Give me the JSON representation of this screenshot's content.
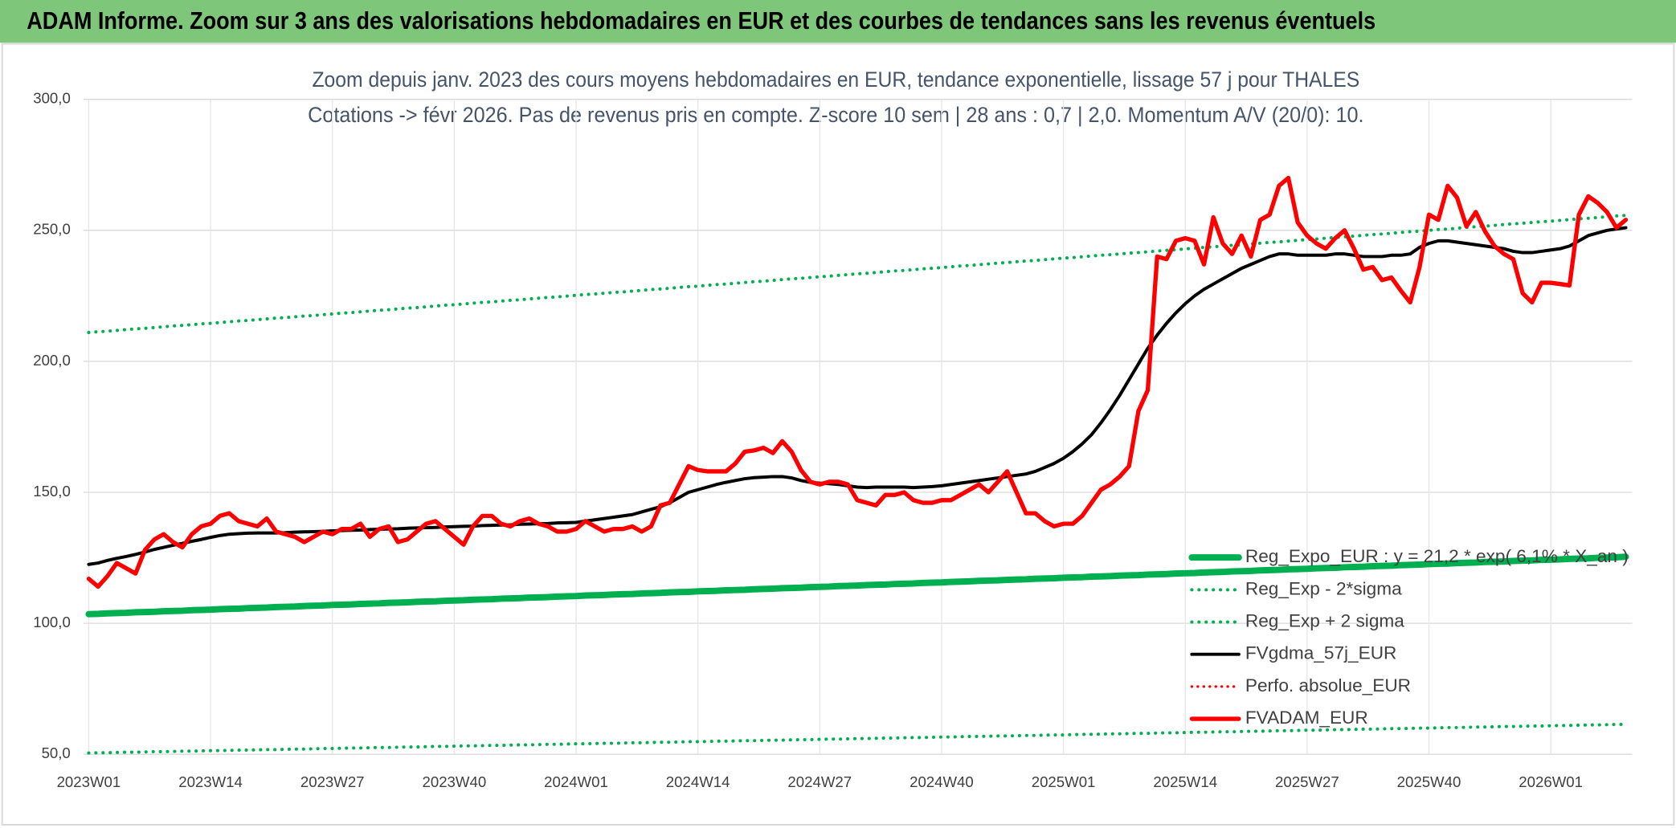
{
  "banner": "ADAM Informe. Zoom sur 3 ans des valorisations hebdomadaires en EUR et des courbes de tendances sans les revenus éventuels",
  "chart_data": {
    "type": "line",
    "title": "Zoom depuis janv. 2023 des cours moyens hebdomadaires en EUR, tendance exponentielle, lissage 57 j pour THALES",
    "subtitle": "Cotations -> févr 2026. Pas de revenus pris en compte. Z-score 10 sem | 28 ans : 0,7 | 2,0. Momentum A/V (20/0): 10.",
    "categories": [
      "2023W01",
      null,
      null,
      null,
      null,
      null,
      null,
      null,
      null,
      null,
      null,
      null,
      null,
      "2023W14",
      null,
      null,
      null,
      null,
      null,
      null,
      null,
      null,
      null,
      null,
      null,
      null,
      "2023W27",
      null,
      null,
      null,
      null,
      null,
      null,
      null,
      null,
      null,
      null,
      null,
      null,
      "2023W40",
      null,
      null,
      null,
      null,
      null,
      null,
      null,
      null,
      null,
      null,
      null,
      null,
      "2024W01",
      null,
      null,
      null,
      null,
      null,
      null,
      null,
      null,
      null,
      null,
      null,
      null,
      "2024W14",
      null,
      null,
      null,
      null,
      null,
      null,
      null,
      null,
      null,
      null,
      null,
      null,
      "2024W27",
      null,
      null,
      null,
      null,
      null,
      null,
      null,
      null,
      null,
      null,
      null,
      null,
      "2024W40",
      null,
      null,
      null,
      null,
      null,
      null,
      null,
      null,
      null,
      null,
      null,
      null,
      "2025W01",
      null,
      null,
      null,
      null,
      null,
      null,
      null,
      null,
      null,
      null,
      null,
      null,
      "2025W14",
      null,
      null,
      null,
      null,
      null,
      null,
      null,
      null,
      null,
      null,
      null,
      null,
      "2025W27",
      null,
      null,
      null,
      null,
      null,
      null,
      null,
      null,
      null,
      null,
      null,
      null,
      "2025W40",
      null,
      null,
      null,
      null,
      null,
      null,
      null,
      null,
      null,
      null,
      null,
      null,
      "2026W01",
      null,
      null,
      null,
      null,
      null,
      null,
      null,
      null
    ],
    "ylim": [
      50,
      300
    ],
    "yticks": [
      {
        "value": 50,
        "label": "50,0"
      },
      {
        "value": 100,
        "label": "100,0"
      },
      {
        "value": 150,
        "label": "150,0"
      },
      {
        "value": 200,
        "label": "200,0"
      },
      {
        "value": 250,
        "label": "250,0"
      },
      {
        "value": 300,
        "label": "300,0"
      }
    ],
    "grid": true,
    "legend_position": "lower right",
    "series": [
      {
        "name": "Reg_Expo_EUR : y = 21,2 * exp( 6,1% * X_an )",
        "color": "#00b050",
        "line_style": "solid",
        "values": [
          103.5,
          103.6,
          103.8,
          103.9,
          104.0,
          104.2,
          104.3,
          104.4,
          104.6,
          104.7,
          104.8,
          105.0,
          105.1,
          105.2,
          105.4,
          105.5,
          105.6,
          105.8,
          105.9,
          106.0,
          106.2,
          106.3,
          106.4,
          106.6,
          106.7,
          106.8,
          107.0,
          107.1,
          107.2,
          107.4,
          107.5,
          107.6,
          107.8,
          107.9,
          108.0,
          108.2,
          108.3,
          108.4,
          108.6,
          108.7,
          108.8,
          109.0,
          109.1,
          109.2,
          109.4,
          109.5,
          109.6,
          109.8,
          109.9,
          110.0,
          110.2,
          110.3,
          110.4,
          110.6,
          110.7,
          110.8,
          111.0,
          111.1,
          111.2,
          111.4,
          111.5,
          111.6,
          111.8,
          111.9,
          112.0,
          112.2,
          112.3,
          112.4,
          112.6,
          112.7,
          112.8,
          113.0,
          113.1,
          113.2,
          113.4,
          113.5,
          113.6,
          113.8,
          113.9,
          114.0,
          114.2,
          114.3,
          114.4,
          114.6,
          114.7,
          114.8,
          115.0,
          115.1,
          115.2,
          115.4,
          115.5,
          115.6,
          115.8,
          115.9,
          116.0,
          116.2,
          116.3,
          116.4,
          116.6,
          116.7,
          116.8,
          117.0,
          117.1,
          117.2,
          117.4,
          117.5,
          117.6,
          117.8,
          117.9,
          118.0,
          118.2,
          118.3,
          118.4,
          118.6,
          118.7,
          118.8,
          119.0,
          119.1,
          119.2,
          119.4,
          119.5,
          119.6,
          119.8,
          119.9,
          120.0,
          120.2,
          120.3,
          120.4,
          120.6,
          120.7,
          120.8,
          121.0,
          121.1,
          121.2,
          121.4,
          121.5,
          121.6,
          121.8,
          121.9,
          122.0,
          122.2,
          122.3,
          122.4,
          122.6,
          122.7,
          122.8,
          123.0,
          123.1,
          123.2,
          123.4,
          123.5,
          123.6,
          123.8,
          123.9,
          124.0,
          124.2,
          124.3,
          124.4,
          124.6,
          124.7,
          124.8,
          125.0,
          125.1,
          125.2,
          125.4
        ]
      },
      {
        "name": "Reg_Exp - 2*sigma",
        "color": "#00b050",
        "line_style": "dotted",
        "values": [
          50.5,
          50.6,
          50.6,
          50.7,
          50.8,
          50.8,
          50.9,
          51.0,
          51.0,
          51.1,
          51.2,
          51.2,
          51.3,
          51.4,
          51.4,
          51.5,
          51.6,
          51.6,
          51.7,
          51.8,
          51.8,
          51.9,
          52.0,
          52.0,
          52.1,
          52.2,
          52.2,
          52.3,
          52.4,
          52.4,
          52.5,
          52.6,
          52.6,
          52.7,
          52.8,
          52.8,
          52.9,
          53.0,
          53.0,
          53.1,
          53.2,
          53.2,
          53.3,
          53.4,
          53.4,
          53.5,
          53.6,
          53.6,
          53.7,
          53.8,
          53.8,
          53.9,
          54.0,
          54.0,
          54.1,
          54.2,
          54.2,
          54.3,
          54.4,
          54.4,
          54.5,
          54.6,
          54.6,
          54.7,
          54.8,
          54.8,
          54.9,
          55.0,
          55.0,
          55.1,
          55.2,
          55.2,
          55.3,
          55.4,
          55.4,
          55.5,
          55.6,
          55.6,
          55.7,
          55.8,
          55.8,
          55.9,
          56.0,
          56.0,
          56.1,
          56.2,
          56.2,
          56.3,
          56.4,
          56.4,
          56.5,
          56.6,
          56.6,
          56.7,
          56.8,
          56.8,
          56.9,
          57.0,
          57.0,
          57.1,
          57.2,
          57.2,
          57.3,
          57.4,
          57.4,
          57.5,
          57.6,
          57.6,
          57.7,
          57.8,
          57.8,
          57.9,
          58.0,
          58.0,
          58.1,
          58.2,
          58.2,
          58.3,
          58.4,
          58.4,
          58.5,
          58.6,
          58.6,
          58.7,
          58.8,
          58.8,
          58.9,
          59.0,
          59.0,
          59.1,
          59.2,
          59.2,
          59.3,
          59.4,
          59.4,
          59.5,
          59.6,
          59.6,
          59.7,
          59.8,
          59.8,
          59.9,
          60.0,
          60.0,
          60.1,
          60.2,
          60.2,
          60.3,
          60.4,
          60.4,
          60.5,
          60.6,
          60.6,
          60.7,
          60.8,
          60.8,
          60.9,
          61.0,
          61.0,
          61.1,
          61.2,
          61.2,
          61.3,
          61.4,
          61.4
        ]
      },
      {
        "name": "Reg_Exp + 2 sigma",
        "color": "#00b050",
        "line_style": "dotted",
        "values": [
          211.0,
          211.3,
          211.5,
          211.8,
          212.1,
          212.4,
          212.6,
          212.9,
          213.2,
          213.5,
          213.7,
          214.0,
          214.3,
          214.5,
          214.8,
          215.1,
          215.4,
          215.6,
          215.9,
          216.2,
          216.5,
          216.7,
          217.0,
          217.3,
          217.5,
          217.8,
          218.1,
          218.4,
          218.6,
          218.9,
          219.2,
          219.5,
          219.7,
          220.0,
          220.3,
          220.5,
          220.8,
          221.1,
          221.4,
          221.6,
          221.9,
          222.2,
          222.5,
          222.7,
          223.0,
          223.3,
          223.5,
          223.8,
          224.1,
          224.4,
          224.6,
          224.9,
          225.2,
          225.5,
          225.7,
          226.0,
          226.3,
          226.5,
          226.8,
          227.1,
          227.4,
          227.6,
          227.9,
          228.2,
          228.5,
          228.7,
          229.0,
          229.3,
          229.5,
          229.8,
          230.1,
          230.4,
          230.6,
          230.9,
          231.2,
          231.5,
          231.7,
          232.0,
          232.3,
          232.5,
          232.8,
          233.1,
          233.4,
          233.6,
          233.9,
          234.2,
          234.5,
          234.7,
          235.0,
          235.3,
          235.5,
          235.8,
          236.1,
          236.4,
          236.6,
          236.9,
          237.2,
          237.5,
          237.7,
          238.0,
          238.3,
          238.5,
          238.8,
          239.1,
          239.4,
          239.6,
          239.9,
          240.2,
          240.5,
          240.7,
          241.0,
          241.3,
          241.5,
          241.8,
          242.1,
          242.4,
          242.6,
          242.9,
          243.2,
          243.5,
          243.7,
          244.0,
          244.3,
          244.5,
          244.8,
          245.1,
          245.4,
          245.6,
          245.9,
          246.2,
          246.5,
          246.7,
          247.0,
          247.3,
          247.5,
          247.8,
          248.1,
          248.4,
          248.6,
          248.9,
          249.2,
          249.5,
          249.7,
          250.0,
          250.3,
          250.5,
          250.8,
          251.1,
          251.4,
          251.6,
          251.9,
          252.2,
          252.5,
          252.7,
          253.0,
          253.3,
          253.5,
          253.8,
          254.1,
          254.4,
          254.6,
          254.9,
          255.2,
          255.5,
          255.7
        ]
      },
      {
        "name": "FVgdma_57j_EUR",
        "color": "#000000",
        "line_style": "solid",
        "values": [
          122.5,
          123,
          124,
          124.8,
          125.5,
          126.3,
          127.2,
          128.2,
          129,
          129.8,
          130.5,
          131.3,
          132,
          132.8,
          133.5,
          134,
          134.2,
          134.4,
          134.5,
          134.5,
          134.5,
          134.6,
          134.8,
          134.9,
          135,
          135.1,
          135.3,
          135.4,
          135.5,
          135.6,
          135.8,
          135.9,
          136,
          136.1,
          136.3,
          136.4,
          136.5,
          136.6,
          136.8,
          136.9,
          137,
          137.1,
          137.3,
          137.4,
          137.5,
          137.6,
          137.8,
          137.9,
          138,
          138.1,
          138.3,
          138.4,
          138.5,
          139,
          139.5,
          140,
          140.5,
          141,
          141.5,
          142.5,
          143.5,
          144.5,
          146,
          148,
          150,
          151,
          152,
          153,
          153.8,
          154.5,
          155.2,
          155.6,
          155.8,
          156,
          156,
          155.5,
          154.5,
          153.8,
          153.5,
          153.3,
          153,
          152.5,
          152,
          151.8,
          152,
          152,
          152,
          152,
          151.8,
          152,
          152.2,
          152.5,
          153,
          153.5,
          154,
          154.5,
          155,
          155.5,
          156,
          156.5,
          157,
          158,
          159.5,
          161,
          163,
          165.5,
          168.5,
          172,
          176.5,
          181.5,
          187,
          193,
          199,
          205,
          210,
          214.5,
          218.5,
          222,
          225,
          227.5,
          229.5,
          231.5,
          233.5,
          235.5,
          237,
          238.5,
          240,
          241,
          241,
          240.5,
          240.5,
          240.5,
          240.5,
          241,
          241,
          240.5,
          240,
          240,
          240,
          240.5,
          240.5,
          241,
          243.5,
          245,
          246,
          246,
          245.5,
          245,
          244.5,
          244,
          243.5,
          243,
          242,
          241.5,
          241.5,
          242,
          242.5,
          243,
          244,
          246,
          248,
          249,
          250,
          250.5,
          251
        ]
      },
      {
        "name": "Perfo. absolue_EUR",
        "color": "#ff0000",
        "line_style": "dotted",
        "values": [
          null,
          null,
          null,
          null,
          null,
          null,
          null,
          null,
          null,
          null,
          null,
          null,
          null,
          null,
          null,
          null,
          null,
          null,
          null,
          null,
          null,
          null,
          null,
          null,
          null,
          null,
          null,
          null,
          null,
          null,
          null,
          null,
          null,
          null,
          null,
          null,
          null,
          null,
          null,
          null,
          null,
          null,
          null,
          null,
          null,
          null,
          null,
          null,
          null,
          null,
          null,
          null,
          null,
          null,
          null,
          null,
          null,
          null,
          null,
          null,
          null,
          null,
          null,
          null,
          null,
          null,
          null,
          null,
          null,
          null,
          null,
          null,
          null,
          null,
          null,
          null,
          null,
          null,
          null,
          null,
          null,
          null,
          null,
          null,
          null,
          null,
          null,
          null,
          null,
          null,
          null,
          null,
          null,
          null,
          null,
          null,
          null,
          null,
          null,
          null,
          null,
          null,
          null,
          null,
          null,
          null,
          null,
          null,
          null,
          null,
          null,
          null,
          null,
          null,
          null,
          null,
          null,
          null,
          null,
          null,
          null,
          null,
          null,
          null,
          null,
          null,
          null,
          null,
          null,
          null,
          null,
          null,
          null,
          null,
          null,
          null,
          null,
          null,
          null,
          null,
          null,
          null,
          null,
          null,
          null,
          null,
          null,
          null,
          null,
          null,
          null,
          null,
          null,
          null,
          null,
          null,
          null,
          null,
          null,
          null,
          null,
          null,
          null,
          null,
          null
        ]
      },
      {
        "name": "FVADAM_EUR",
        "color": "#ff0000",
        "line_style": "solid",
        "values": [
          117,
          114,
          118,
          123,
          121,
          119,
          128,
          132,
          134,
          131,
          129,
          134,
          137,
          138,
          141,
          142,
          139,
          138,
          137,
          140,
          135,
          134,
          133,
          131,
          133,
          135,
          134,
          136,
          136,
          138,
          133,
          136,
          137,
          131,
          132,
          135,
          138,
          139,
          136,
          133,
          130,
          137,
          141,
          141,
          138,
          137,
          139,
          140,
          138,
          137,
          135,
          135,
          136,
          139,
          137,
          135,
          136,
          136,
          137,
          135,
          137,
          145,
          146,
          153,
          160,
          158.5,
          158,
          158,
          158,
          161,
          165.5,
          166,
          167,
          165,
          169.5,
          165.5,
          158.5,
          154,
          153,
          154,
          154,
          153,
          147,
          146,
          145,
          149,
          149,
          150,
          147,
          146,
          146,
          147,
          147,
          149,
          151,
          153,
          150,
          154,
          158,
          150,
          142,
          142,
          139,
          137,
          138,
          138,
          141,
          146,
          151,
          153,
          156,
          160,
          181,
          189,
          240,
          239,
          246,
          247,
          246,
          237,
          255,
          245,
          241,
          248,
          240,
          254,
          256,
          267,
          270,
          253,
          248,
          245,
          243,
          247,
          250,
          243,
          235,
          236,
          231,
          232,
          227,
          222.5,
          236,
          256,
          254,
          267,
          262.5,
          251.5,
          257,
          249.5,
          244,
          241,
          239,
          226,
          222.5,
          230,
          230,
          229.5,
          229,
          256,
          263,
          260.5,
          257,
          251,
          254
        ]
      }
    ]
  }
}
